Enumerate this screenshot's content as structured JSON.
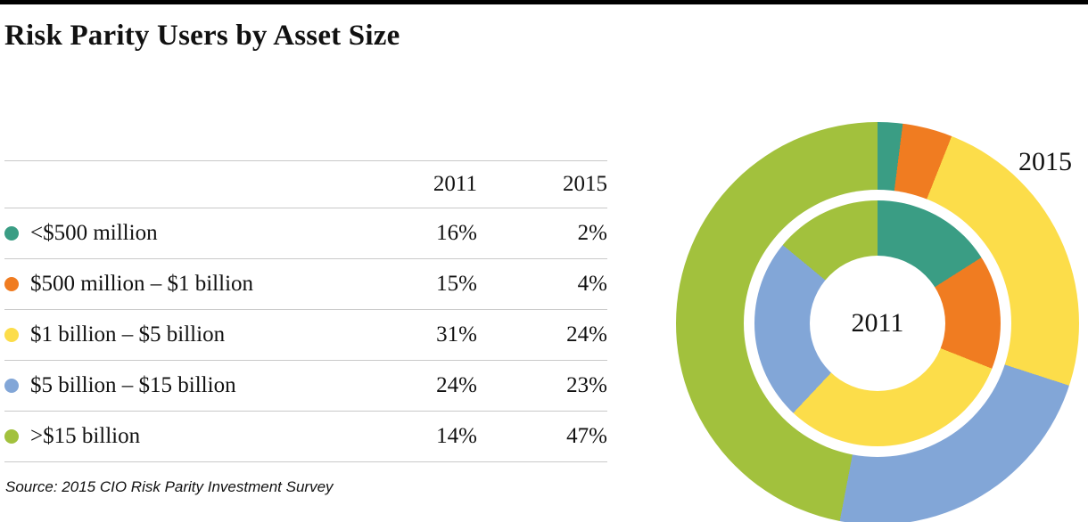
{
  "title": "Risk Parity Users by Asset Size",
  "source": "Source: 2015 CIO Risk Parity Investment Survey",
  "table": {
    "col_headers": [
      "2011",
      "2015"
    ],
    "rows": [
      {
        "label": "<$500 million",
        "v2011": "16%",
        "v2015": "2%",
        "color": "#3a9d84"
      },
      {
        "label": "$500 million – $1 billion",
        "v2011": "15%",
        "v2015": "4%",
        "color": "#f07c21"
      },
      {
        "label": "$1 billion – $5 billion",
        "v2011": "31%",
        "v2015": "24%",
        "color": "#fcdd4a"
      },
      {
        "label": "$5 billion – $15 billion",
        "v2011": "24%",
        "v2015": "23%",
        "color": "#82a6d7"
      },
      {
        "label": ">$15 billion",
        "v2011": "14%",
        "v2015": "47%",
        "color": "#a2c13d"
      }
    ]
  },
  "chart_data": {
    "type": "pie",
    "variant": "nested-donut",
    "title": "Risk Parity Users by Asset Size",
    "categories": [
      "<$500 million",
      "$500 million – $1 billion",
      "$1 billion – $5 billion",
      "$5 billion – $15 billion",
      ">$15 billion"
    ],
    "colors": [
      "#3a9d84",
      "#f07c21",
      "#fcdd4a",
      "#82a6d7",
      "#a2c13d"
    ],
    "series": [
      {
        "name": "2011",
        "ring": "inner",
        "values": [
          16,
          15,
          31,
          24,
          14
        ]
      },
      {
        "name": "2015",
        "ring": "outer",
        "values": [
          2,
          4,
          24,
          23,
          47
        ]
      }
    ],
    "center_label": "2011",
    "outer_label": "2015",
    "legend_position": "left-table",
    "start_angle_deg": 0,
    "direction": "clockwise"
  }
}
